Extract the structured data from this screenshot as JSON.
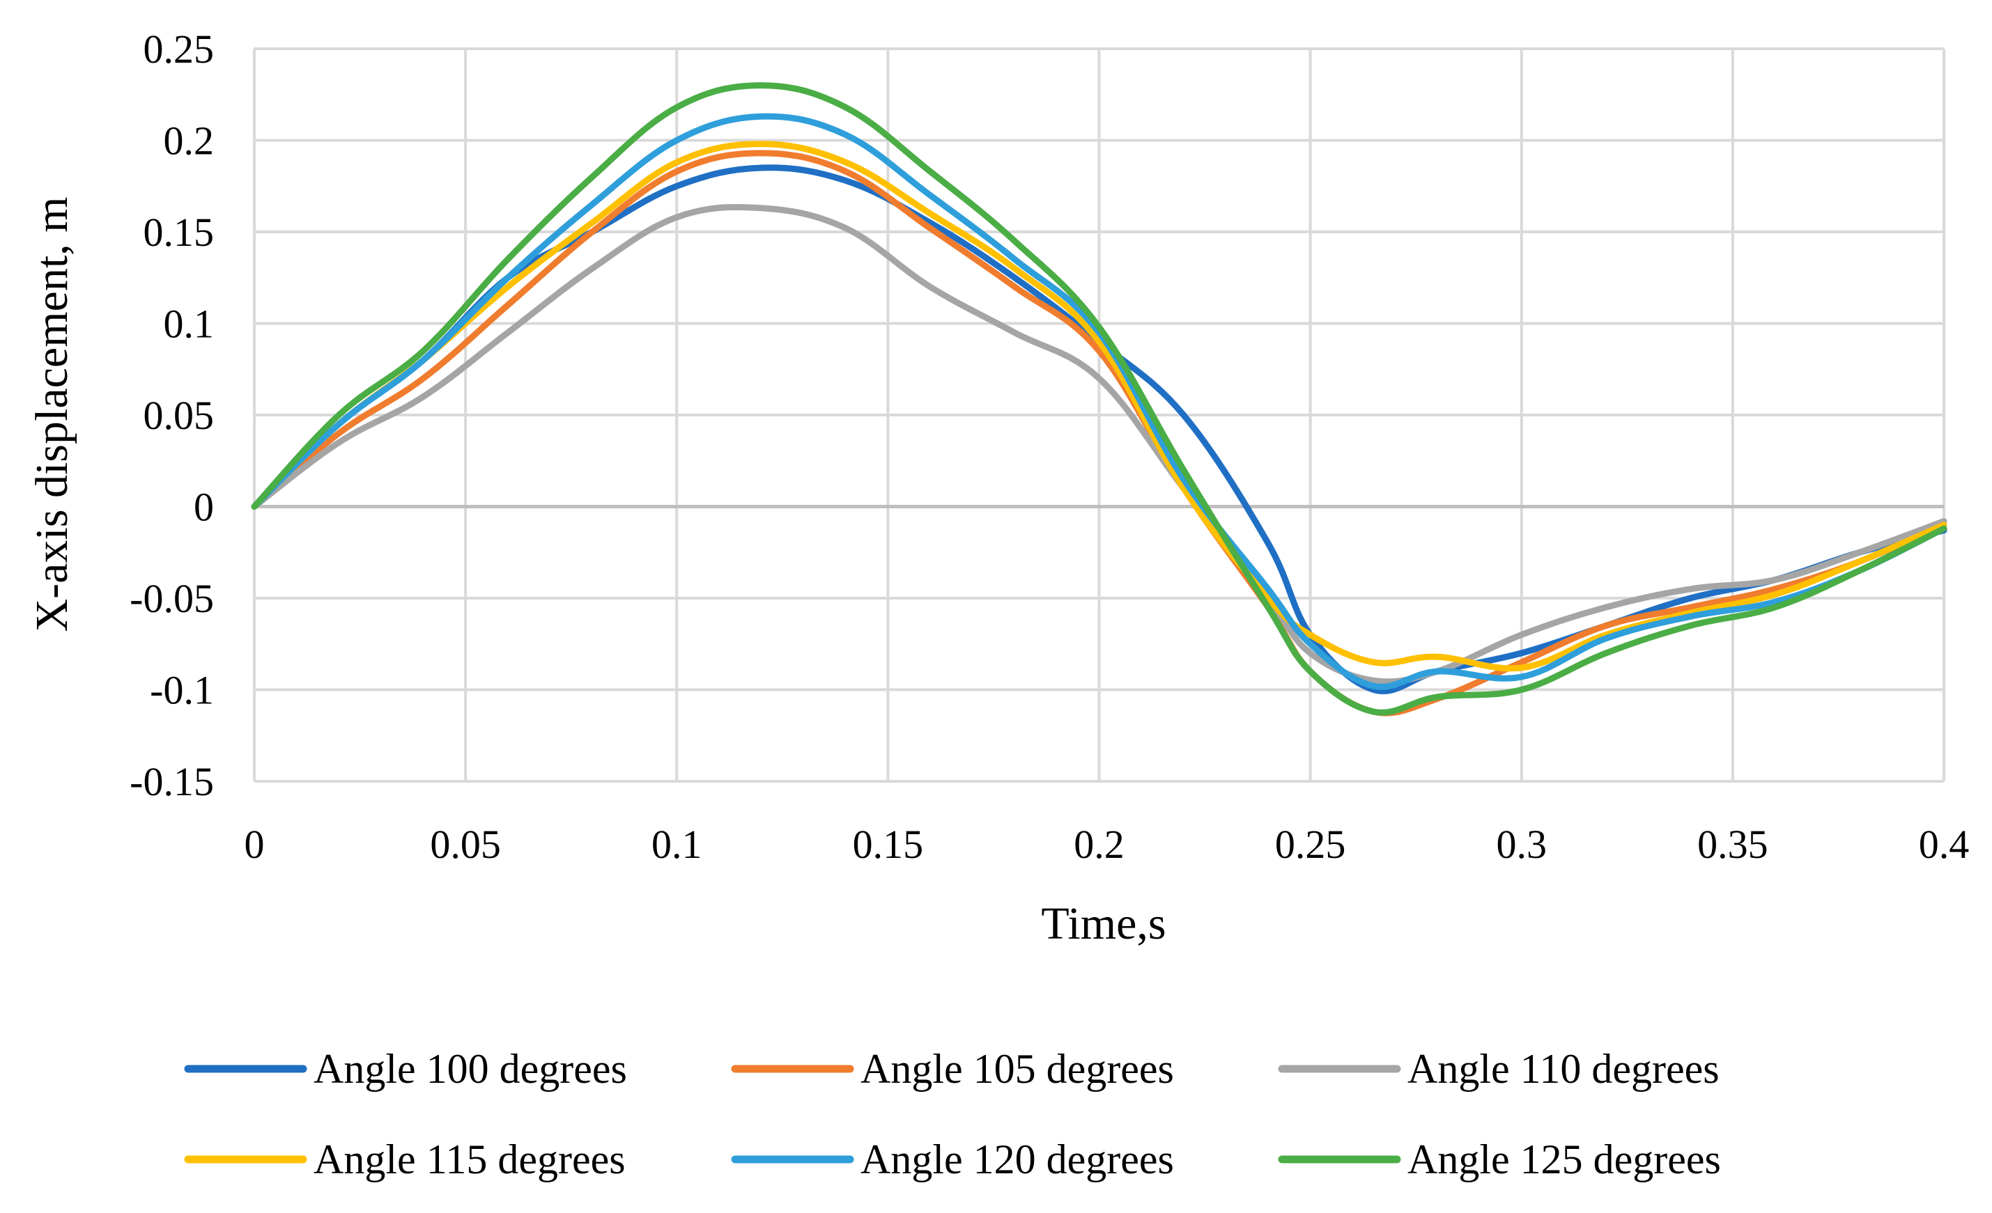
{
  "chart_data": {
    "type": "line",
    "title": "",
    "xlabel": "Time,s",
    "ylabel": "X-axis displacement, m",
    "xlim": [
      0,
      0.4
    ],
    "ylim": [
      -0.15,
      0.25
    ],
    "x_ticks": [
      "0",
      "0.05",
      "0.1",
      "0.15",
      "0.2",
      "0.25",
      "0.3",
      "0.35",
      "0.4"
    ],
    "y_ticks": [
      "0.25",
      "0.2",
      "0.15",
      "0.1",
      "0.05",
      "0",
      "-0.05",
      "-0.1",
      "-0.15"
    ],
    "grid": true,
    "legend_position": "bottom",
    "x": [
      0,
      0.02,
      0.04,
      0.06,
      0.08,
      0.1,
      0.12,
      0.14,
      0.16,
      0.18,
      0.2,
      0.22,
      0.24,
      0.25,
      0.265,
      0.28,
      0.3,
      0.32,
      0.34,
      0.36,
      0.38,
      0.4
    ],
    "series": [
      {
        "name": "Angle 100 degrees",
        "color": "#1f6fc4",
        "values": [
          0,
          0.045,
          0.08,
          0.125,
          0.15,
          0.175,
          0.185,
          0.178,
          0.155,
          0.125,
          0.09,
          0.05,
          -0.02,
          -0.07,
          -0.1,
          -0.09,
          -0.08,
          -0.065,
          -0.05,
          -0.04,
          -0.025,
          -0.013
        ]
      },
      {
        "name": "Angle 105 degrees",
        "color": "#f07c2e",
        "values": [
          0,
          0.04,
          0.07,
          0.11,
          0.15,
          0.183,
          0.193,
          0.183,
          0.152,
          0.12,
          0.085,
          0.01,
          -0.055,
          -0.09,
          -0.112,
          -0.105,
          -0.085,
          -0.065,
          -0.055,
          -0.045,
          -0.03,
          -0.01
        ]
      },
      {
        "name": "Angle 110 degrees",
        "color": "#a5a5a5",
        "values": [
          0,
          0.035,
          0.06,
          0.095,
          0.13,
          0.158,
          0.163,
          0.152,
          0.12,
          0.095,
          0.07,
          0.01,
          -0.05,
          -0.08,
          -0.095,
          -0.09,
          -0.07,
          -0.055,
          -0.045,
          -0.04,
          -0.025,
          -0.008
        ]
      },
      {
        "name": "Angle 115 degrees",
        "color": "#ffc000",
        "values": [
          0,
          0.045,
          0.08,
          0.12,
          0.155,
          0.188,
          0.198,
          0.188,
          0.16,
          0.13,
          0.09,
          0.01,
          -0.05,
          -0.07,
          -0.085,
          -0.082,
          -0.088,
          -0.07,
          -0.058,
          -0.048,
          -0.03,
          -0.01
        ]
      },
      {
        "name": "Angle 120 degrees",
        "color": "#2e9fdb",
        "values": [
          0,
          0.045,
          0.08,
          0.125,
          0.165,
          0.2,
          0.213,
          0.203,
          0.17,
          0.135,
          0.095,
          0.015,
          -0.045,
          -0.075,
          -0.098,
          -0.09,
          -0.093,
          -0.072,
          -0.06,
          -0.052,
          -0.035,
          -0.012
        ]
      },
      {
        "name": "Angle 125 degrees",
        "color": "#4aad45",
        "values": [
          0,
          0.05,
          0.085,
          0.135,
          0.18,
          0.218,
          0.23,
          0.218,
          0.183,
          0.145,
          0.098,
          0.02,
          -0.055,
          -0.09,
          -0.112,
          -0.104,
          -0.1,
          -0.08,
          -0.065,
          -0.055,
          -0.035,
          -0.012
        ]
      }
    ]
  }
}
